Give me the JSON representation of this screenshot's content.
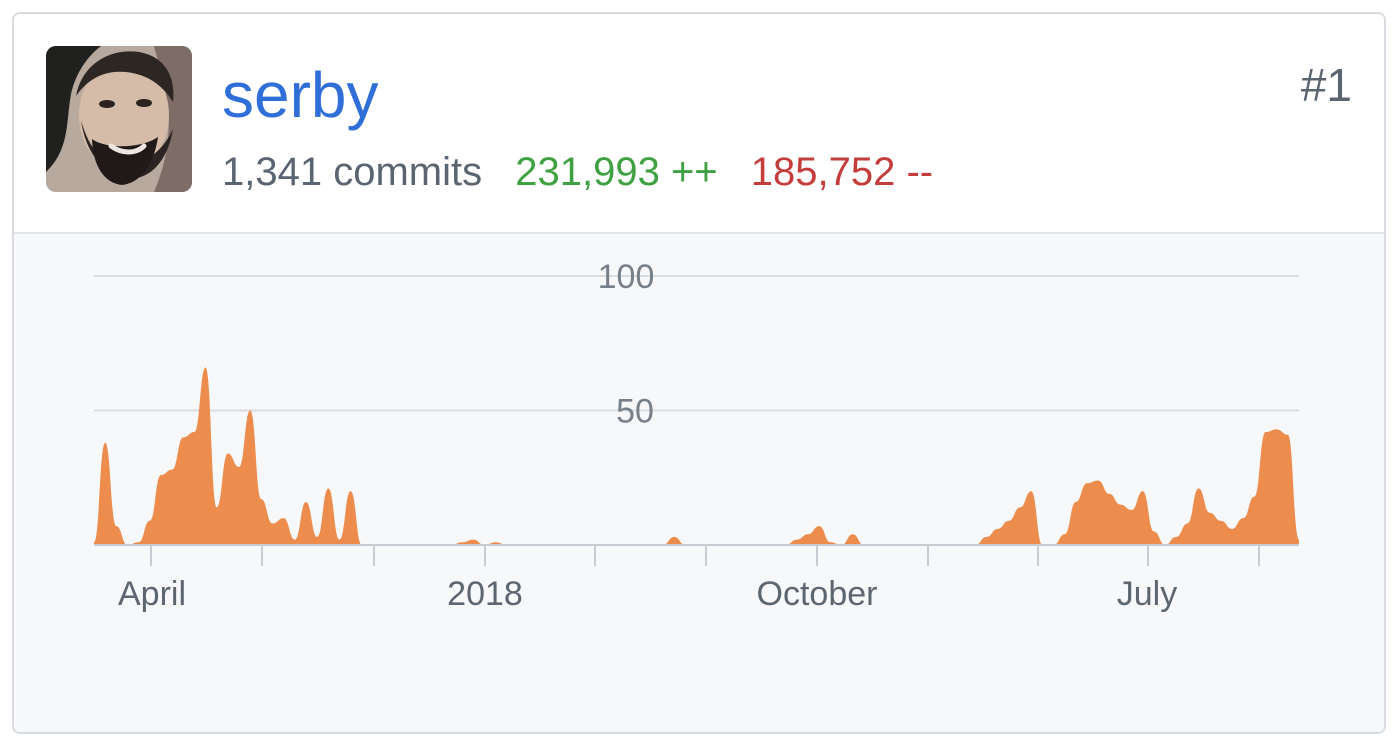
{
  "contributor": {
    "username": "serby",
    "rank": "#1",
    "commits": "1,341 commits",
    "additions": "231,993 ++",
    "deletions": "185,752 --",
    "avatar_icon": "bearded-man-avatar"
  },
  "colors": {
    "username": "#2f6fd7",
    "additions": "#3fa142",
    "deletions": "#c53c3c",
    "area": "#ec8d4d"
  },
  "chart_data": {
    "type": "area",
    "yticks": [
      0,
      50,
      100
    ],
    "ytick_labels": [
      "100",
      "50"
    ],
    "ylim": [
      0,
      100
    ],
    "xtick_labels": [
      "April",
      "2018",
      "October",
      "July"
    ],
    "series": [
      {
        "values": [
          1,
          38,
          7,
          0,
          1,
          9,
          26,
          28,
          40,
          42,
          66,
          14,
          34,
          29,
          50,
          17,
          8,
          10,
          2,
          16,
          3,
          21,
          2,
          20,
          0,
          0,
          0,
          0,
          0,
          0,
          0,
          0,
          0,
          1,
          2,
          0,
          1,
          0,
          0,
          0,
          0,
          0,
          0,
          0,
          0,
          0,
          0,
          0,
          0,
          0,
          0,
          0,
          3,
          0,
          0,
          0,
          0,
          0,
          0,
          0,
          0,
          0,
          0,
          2,
          4,
          7,
          1,
          0,
          4,
          0,
          0,
          0,
          0,
          0,
          0,
          0,
          0,
          0,
          0,
          0,
          3,
          6,
          9,
          14,
          20,
          0,
          0,
          4,
          16,
          23,
          24,
          19,
          15,
          13,
          20,
          5,
          0,
          3,
          8,
          21,
          12,
          9,
          6,
          10,
          18,
          42,
          43,
          41,
          2
        ]
      }
    ]
  }
}
